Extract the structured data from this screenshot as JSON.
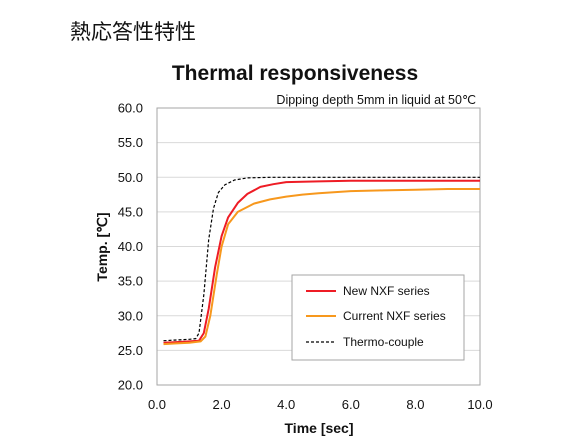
{
  "page": {
    "heading": "熱応答性特性"
  },
  "colors": {
    "new_series": "#ee1c25",
    "current_series": "#f7981d",
    "thermocouple": "#000000",
    "grid": "#d9d9d9",
    "axis": "#a6a6a6"
  },
  "chart_data": {
    "type": "line",
    "title": "Thermal responsiveness",
    "subtitle": "Dipping depth 5mm in liquid at 50℃",
    "xlabel": "Time [sec]",
    "ylabel": "Temp. [℃]",
    "xlim": [
      0,
      10
    ],
    "ylim": [
      20,
      60
    ],
    "x_ticks": [
      "0.0",
      "2.0",
      "4.0",
      "6.0",
      "8.0",
      "10.0"
    ],
    "y_ticks": [
      "20.0",
      "25.0",
      "30.0",
      "35.0",
      "40.0",
      "45.0",
      "50.0",
      "55.0",
      "60.0"
    ],
    "grid": "horizontal",
    "legend_position": "lower-right",
    "series": [
      {
        "name": "New NXF series",
        "color": "#ee1c25",
        "style": "solid",
        "points": [
          [
            0.2,
            26.1
          ],
          [
            0.6,
            26.2
          ],
          [
            1.0,
            26.3
          ],
          [
            1.3,
            26.4
          ],
          [
            1.45,
            27.5
          ],
          [
            1.6,
            31
          ],
          [
            1.8,
            37
          ],
          [
            2.0,
            41.5
          ],
          [
            2.2,
            44.2
          ],
          [
            2.5,
            46.3
          ],
          [
            2.8,
            47.6
          ],
          [
            3.2,
            48.6
          ],
          [
            3.6,
            49.0
          ],
          [
            4.0,
            49.3
          ],
          [
            5.0,
            49.4
          ],
          [
            6.0,
            49.5
          ],
          [
            7.0,
            49.5
          ],
          [
            8.0,
            49.5
          ],
          [
            9.0,
            49.5
          ],
          [
            10.0,
            49.5
          ]
        ]
      },
      {
        "name": "Current NXF series",
        "color": "#f7981d",
        "style": "solid",
        "points": [
          [
            0.2,
            25.9
          ],
          [
            0.6,
            26.0
          ],
          [
            1.0,
            26.1
          ],
          [
            1.35,
            26.3
          ],
          [
            1.5,
            27
          ],
          [
            1.65,
            30
          ],
          [
            1.85,
            36
          ],
          [
            2.0,
            40
          ],
          [
            2.2,
            43.2
          ],
          [
            2.5,
            45
          ],
          [
            3.0,
            46.2
          ],
          [
            3.5,
            46.8
          ],
          [
            4.0,
            47.2
          ],
          [
            4.5,
            47.5
          ],
          [
            5.0,
            47.7
          ],
          [
            6.0,
            48.0
          ],
          [
            7.0,
            48.1
          ],
          [
            8.0,
            48.2
          ],
          [
            9.0,
            48.3
          ],
          [
            10.0,
            48.3
          ]
        ]
      },
      {
        "name": "Thermo-couple",
        "color": "#000000",
        "style": "dashed",
        "points": [
          [
            0.2,
            26.4
          ],
          [
            0.6,
            26.5
          ],
          [
            1.0,
            26.6
          ],
          [
            1.2,
            26.7
          ],
          [
            1.3,
            27.5
          ],
          [
            1.45,
            33
          ],
          [
            1.6,
            41
          ],
          [
            1.75,
            45.5
          ],
          [
            1.9,
            47.8
          ],
          [
            2.1,
            48.9
          ],
          [
            2.4,
            49.6
          ],
          [
            2.8,
            49.9
          ],
          [
            3.5,
            50.0
          ],
          [
            5.0,
            50.0
          ],
          [
            7.0,
            50.0
          ],
          [
            10.0,
            50.0
          ]
        ]
      }
    ]
  }
}
